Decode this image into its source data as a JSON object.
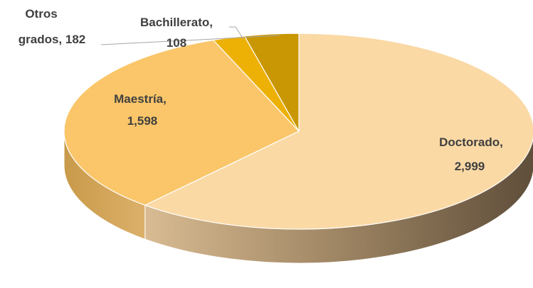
{
  "chart_data": {
    "type": "pie",
    "title": "",
    "slices": [
      {
        "name": "Doctorado",
        "value": 2999,
        "value_label": "2,999",
        "color": "#fad9a5"
      },
      {
        "name": "Maestría",
        "value": 1598,
        "value_label": "1,598",
        "color": "#fac669"
      },
      {
        "name": "Bachillerato",
        "value": 108,
        "value_label": "108",
        "color": "#edb004"
      },
      {
        "name": "Otros grados",
        "value": 182,
        "value_label": "182",
        "color": "#c99703"
      }
    ],
    "legend": "none",
    "data_labels": [
      "Doctorado,",
      "2,999",
      "Maestría,",
      "1,598",
      "Bachillerato,",
      "108",
      "Otros",
      "grados,  182"
    ]
  }
}
